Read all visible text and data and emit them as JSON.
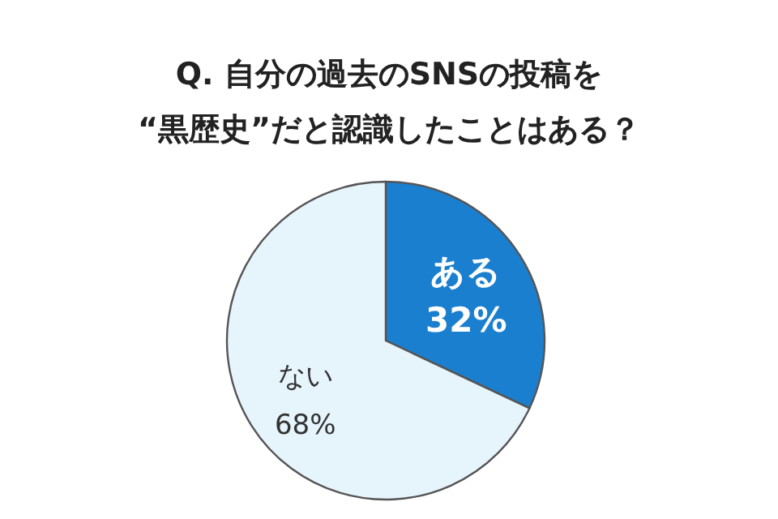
{
  "chart_data": {
    "type": "pie",
    "title": "Q. 自分の過去のSNSの投稿を",
    "subtitle": "“黒歴史”だと認識したことはある？",
    "categories": [
      "ある",
      "ない"
    ],
    "values": [
      32,
      68
    ],
    "value_labels": [
      "32%",
      "68%"
    ],
    "colors": [
      "#1b7fcf",
      "#e6f4fc"
    ]
  }
}
